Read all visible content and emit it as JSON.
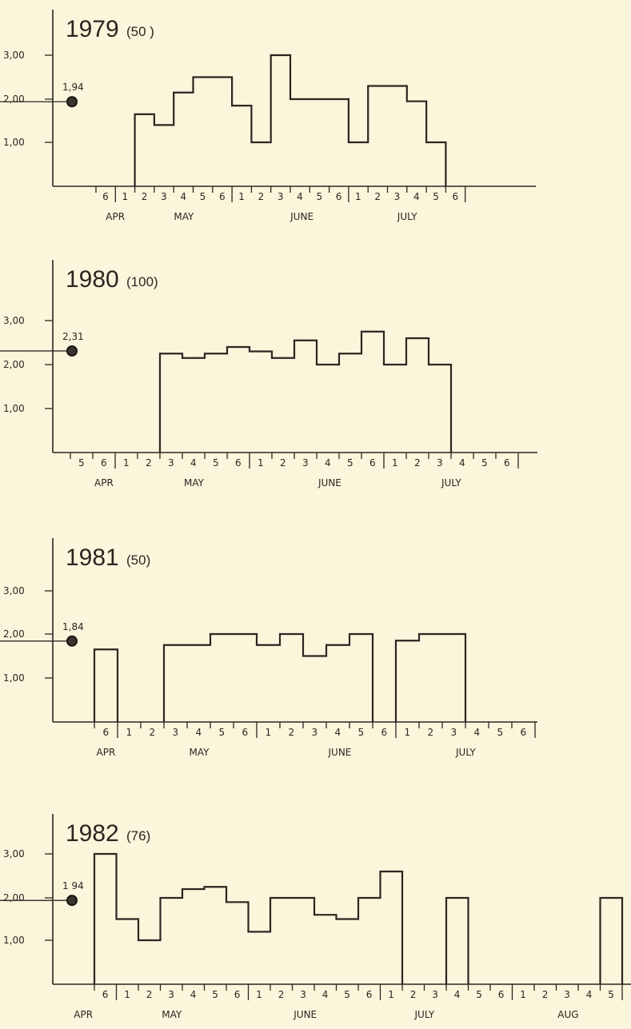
{
  "chart_data": [
    {
      "type": "step",
      "year_label": "1979",
      "count_label": "(50 )",
      "y_tick_labels": [
        "3,00",
        "2,00",
        "1,00"
      ],
      "y_ticks": [
        3,
        2,
        1
      ],
      "ylim": [
        0,
        3.3
      ],
      "mean": 1.94,
      "mean_label": "1,94",
      "week_labels": [
        "6",
        "1",
        "2",
        "3",
        "4",
        "5",
        "6",
        "1",
        "2",
        "3",
        "4",
        "5",
        "6",
        "1",
        "2",
        "3",
        "4",
        "5",
        "6"
      ],
      "month_labels": [
        "APR",
        "MAY",
        "JUNE",
        "JULY"
      ],
      "month_positions": [
        1,
        4.5,
        10.5,
        16
      ],
      "values": [
        null,
        null,
        1.65,
        1.4,
        2.15,
        2.5,
        2.5,
        1.85,
        1.0,
        3.0,
        2.0,
        2.0,
        2.0,
        1.0,
        2.3,
        2.3,
        1.95,
        1.0,
        null
      ]
    },
    {
      "type": "step",
      "year_label": "1980",
      "count_label": "(100)",
      "y_tick_labels": [
        "3,00",
        "2,00",
        "1,00"
      ],
      "y_ticks": [
        3,
        2,
        1
      ],
      "ylim": [
        0,
        3.3
      ],
      "mean": 2.31,
      "mean_label": "2,31",
      "week_labels": [
        "5",
        "6",
        "1",
        "2",
        "3",
        "4",
        "5",
        "6",
        "1",
        "2",
        "3",
        "4",
        "5",
        "6",
        "1",
        "2",
        "3",
        "4",
        "5",
        "6"
      ],
      "month_labels": [
        "APR",
        "MAY",
        "JUNE",
        "JULY"
      ],
      "month_positions": [
        1.5,
        5.5,
        11.5,
        17
      ],
      "values": [
        null,
        null,
        null,
        null,
        2.25,
        2.15,
        2.25,
        2.4,
        2.3,
        2.15,
        2.55,
        2.0,
        2.25,
        2.75,
        2.0,
        2.6,
        2.0,
        null,
        null,
        null
      ]
    },
    {
      "type": "step",
      "year_label": "1981",
      "count_label": "(50)",
      "y_tick_labels": [
        "3,00",
        "2,00",
        "1,00"
      ],
      "y_ticks": [
        3,
        2,
        1
      ],
      "ylim": [
        0,
        3.3
      ],
      "mean": 1.84,
      "mean_label": "1,84",
      "week_labels": [
        "6",
        "1",
        "2",
        "3",
        "4",
        "5",
        "6",
        "1",
        "2",
        "3",
        "4",
        "5",
        "6",
        "1",
        "2",
        "3",
        "4",
        "5",
        "6"
      ],
      "month_labels": [
        "APR",
        "MAY",
        "JUNE",
        "JULY"
      ],
      "month_positions": [
        0.5,
        4.5,
        10.5,
        16
      ],
      "values": [
        1.65,
        null,
        null,
        1.75,
        1.75,
        2.0,
        2.0,
        1.75,
        2.0,
        1.5,
        1.75,
        2.0,
        null,
        1.85,
        2.0,
        2.0,
        null,
        null,
        null
      ]
    },
    {
      "type": "step",
      "year_label": "1982",
      "count_label": "(76)",
      "y_tick_labels": [
        "3,00",
        "2,00",
        "1,00"
      ],
      "y_ticks": [
        3,
        2,
        1
      ],
      "ylim": [
        0,
        3.3
      ],
      "mean": 1.94,
      "mean_label": "1 94",
      "week_labels": [
        "6",
        "1",
        "2",
        "3",
        "4",
        "5",
        "6",
        "1",
        "2",
        "3",
        "4",
        "5",
        "6",
        "1",
        "2",
        "3",
        "4",
        "5",
        "6",
        "1",
        "2",
        "3",
        "4",
        "5"
      ],
      "month_labels": [
        "APR",
        "MAY",
        "JUNE",
        "JULY",
        "AUG"
      ],
      "month_positions": [
        -0.5,
        3.5,
        9.5,
        15,
        21.5
      ],
      "values": [
        3.0,
        1.5,
        1.0,
        2.0,
        2.2,
        2.25,
        1.9,
        1.2,
        2.0,
        2.0,
        1.6,
        1.5,
        2.0,
        2.6,
        null,
        null,
        2.0,
        null,
        null,
        null,
        null,
        null,
        null,
        2.0
      ]
    }
  ]
}
